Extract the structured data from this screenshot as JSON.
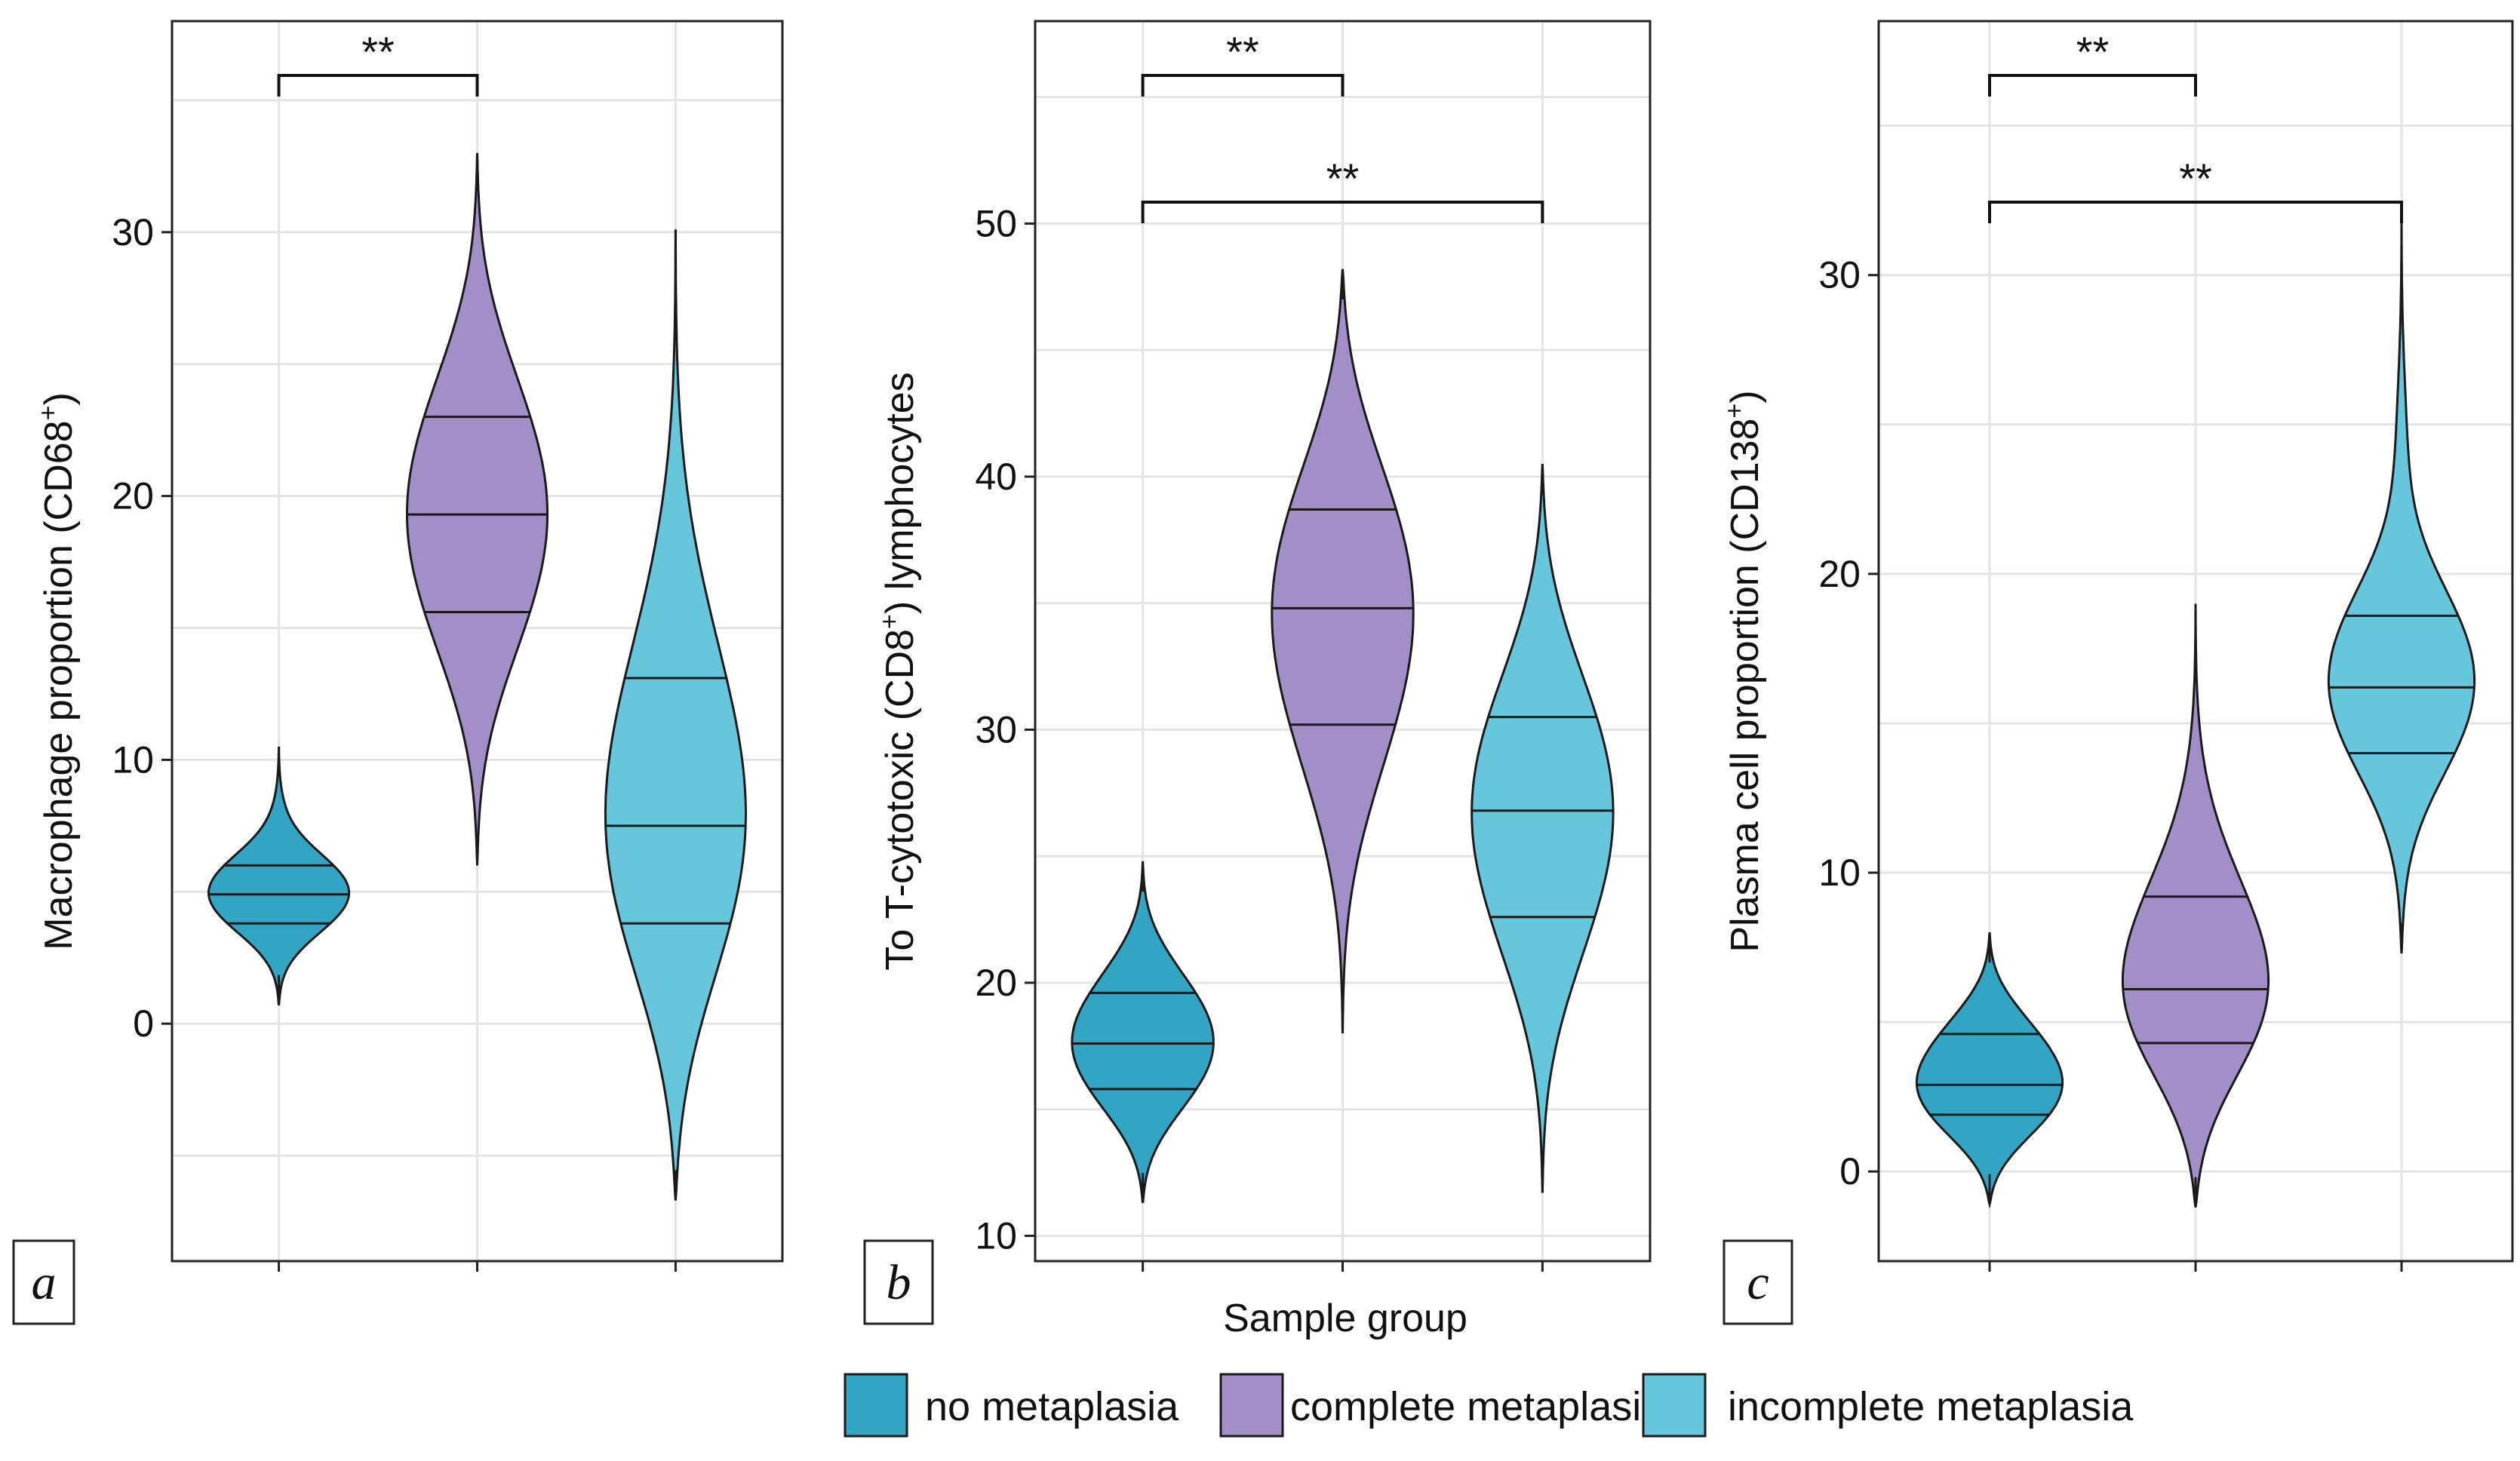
{
  "colors": {
    "no_metaplasia": "#33a5c4",
    "complete_metaplasia": "#a38fc7",
    "incomplete_metaplasia": "#66c6db",
    "grid": "#e4e4e4",
    "outline": "#1a1a1a"
  },
  "shared_xlabel": "Sample group",
  "legend": [
    {
      "label": "no metaplasia",
      "color": "#33a5c4"
    },
    {
      "label": "complete metaplasia",
      "color": "#a38fc7"
    },
    {
      "label": "incomplete metaplasia",
      "color": "#66c6db"
    }
  ],
  "chart_data": [
    {
      "type": "violin",
      "panel_label": "a",
      "ylabel": "Macrophage proportion (CD68",
      "ylabel_sup": "+",
      "ylabel_tail": ")",
      "ylim": [
        -9,
        38
      ],
      "yticks": [
        0,
        10,
        20,
        30
      ],
      "groups": [
        "no metaplasia",
        "complete metaplasia",
        "incomplete metaplasia"
      ],
      "series": [
        {
          "name": "no metaplasia",
          "min": 0.7,
          "max": 10.5,
          "q1": 3.8,
          "median": 4.9,
          "q3": 6.0
        },
        {
          "name": "complete metaplasia",
          "min": 6.0,
          "max": 33.0,
          "q1": 15.6,
          "median": 19.3,
          "q3": 23.0
        },
        {
          "name": "incomplete metaplasia",
          "min": -6.7,
          "max": 30.1,
          "q1": 3.8,
          "median": 7.5,
          "q3": 13.1
        }
      ],
      "significance": [
        {
          "from": 0,
          "to": 1,
          "label": "**"
        }
      ]
    },
    {
      "type": "violin",
      "panel_label": "b",
      "ylabel": "To T-cytotoxic  (CD8",
      "ylabel_sup": "+",
      "ylabel_tail": ") lymphocytes",
      "ylim": [
        9,
        58
      ],
      "yticks": [
        10,
        20,
        30,
        40,
        50
      ],
      "groups": [
        "no metaplasia",
        "complete metaplasia",
        "incomplete metaplasia"
      ],
      "series": [
        {
          "name": "no metaplasia",
          "min": 11.3,
          "max": 24.8,
          "q1": 15.8,
          "median": 17.6,
          "q3": 19.6
        },
        {
          "name": "complete metaplasia",
          "min": 18.0,
          "max": 48.2,
          "q1": 30.2,
          "median": 34.8,
          "q3": 38.7
        },
        {
          "name": "incomplete metaplasia",
          "min": 11.7,
          "max": 40.5,
          "q1": 22.6,
          "median": 26.8,
          "q3": 30.5
        }
      ],
      "significance": [
        {
          "from": 0,
          "to": 1,
          "label": "**"
        },
        {
          "from": 0,
          "to": 2,
          "label": "**"
        }
      ]
    },
    {
      "type": "violin",
      "panel_label": "c",
      "ylabel": "Plasma cell proportion (CD138",
      "ylabel_sup": "+",
      "ylabel_tail": ")",
      "ylim": [
        -3,
        38.5
      ],
      "yticks": [
        0,
        10,
        20,
        30
      ],
      "groups": [
        "no metaplasia",
        "complete metaplasia",
        "incomplete metaplasia"
      ],
      "series": [
        {
          "name": "no metaplasia",
          "min": -1.1,
          "max": 8.0,
          "q1": 1.9,
          "median": 2.9,
          "q3": 4.6
        },
        {
          "name": "complete metaplasia",
          "min": -1.2,
          "max": 19.0,
          "q1": 4.3,
          "median": 6.1,
          "q3": 9.2
        },
        {
          "name": "incomplete metaplasia",
          "min": 7.3,
          "max": 31.9,
          "q1": 14.0,
          "median": 16.2,
          "q3": 18.6
        }
      ],
      "significance": [
        {
          "from": 0,
          "to": 1,
          "label": "**"
        },
        {
          "from": 0,
          "to": 2,
          "label": "**"
        }
      ]
    }
  ]
}
